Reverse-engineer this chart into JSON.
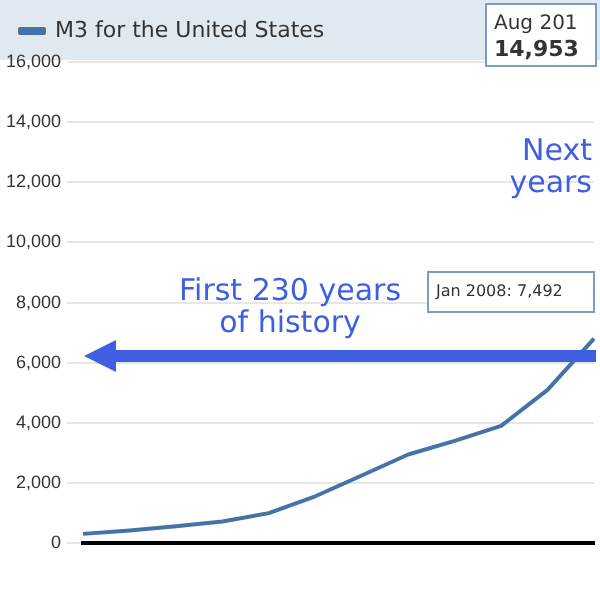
{
  "chart_data": {
    "type": "line",
    "categories": [
      null,
      null,
      null,
      null,
      null,
      null,
      null,
      null,
      null,
      null,
      null,
      null
    ],
    "series": [
      {
        "name": "M3 for the United States",
        "color": "#4572a7",
        "values": [
          310,
          420,
          560,
          720,
          1000,
          1560,
          2250,
          2950,
          3400,
          3900,
          5100,
          6800
        ]
      }
    ],
    "ylim": [
      0,
      16000
    ],
    "yticks": [
      0,
      {
        "value": 2000,
        "label": "2,000"
      },
      {
        "value": 4000,
        "label": "4,000"
      },
      {
        "value": 6000,
        "label": "6,000"
      },
      {
        "value": 8000,
        "label": "8,000"
      },
      {
        "value": 10000,
        "label": "10,000"
      },
      {
        "value": 12000,
        "label": "12,000"
      },
      {
        "value": 14000,
        "label": "14,000"
      },
      {
        "value": 16000,
        "label": "16,000"
      }
    ],
    "grid": "y",
    "legend": "top left",
    "marker": "none",
    "annotations": [
      "Aug 201",
      "14,953",
      "Jan 2008: 7,492",
      "First 230 years\nof history",
      "Next\nyears"
    ]
  }
}
